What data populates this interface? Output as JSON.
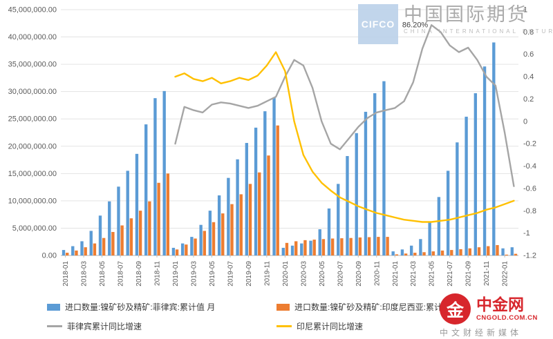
{
  "watermarks": {
    "cifco": {
      "logo": "CIFCO",
      "name_cn": "中国国际期货",
      "name_en": "CHINA INTERNATIONAL FUTURES"
    },
    "cngold": {
      "logo_glyph": "金",
      "name_cn": "中金网",
      "domain": "CNGOLD.COM.CN",
      "tagline": "中文财经新媒体"
    }
  },
  "chart_data": {
    "type": "bar",
    "subtype": "combo-bar-line-dual-axis",
    "grid": true,
    "legend_position": "bottom",
    "title": "",
    "xlabel": "",
    "ylabel": "",
    "categories": [
      "2018-01",
      "2018-02",
      "2018-03",
      "2018-04",
      "2018-05",
      "2018-06",
      "2018-07",
      "2018-08",
      "2018-09",
      "2018-10",
      "2018-11",
      "2018-12",
      "2019-01",
      "2019-02",
      "2019-03",
      "2019-04",
      "2019-05",
      "2019-06",
      "2019-07",
      "2019-08",
      "2019-09",
      "2019-10",
      "2019-11",
      "2019-12",
      "2020-01",
      "2020-02",
      "2020-03",
      "2020-04",
      "2020-05",
      "2020-06",
      "2020-07",
      "2020-08",
      "2020-09",
      "2020-10",
      "2020-11",
      "2020-12",
      "2021-01",
      "2021-02",
      "2021-03",
      "2021-04",
      "2021-05",
      "2021-06",
      "2021-07",
      "2021-08",
      "2021-09",
      "2021-10",
      "2021-11",
      "2021-12",
      "2022-01",
      "2022-02"
    ],
    "x_tick_labels": [
      "2018-01",
      "2018-03",
      "2018-05",
      "2018-07",
      "2018-09",
      "2018-11",
      "2019-01",
      "2019-03",
      "2019-05",
      "2019-07",
      "2019-09",
      "2019-11",
      "2020-01",
      "2020-03",
      "2020-05",
      "2020-07",
      "2020-09",
      "2020-11",
      "2021-01",
      "2021-03",
      "2021-05",
      "2021-07",
      "2021-09",
      "2021-11",
      "2022-01"
    ],
    "left_axis": {
      "min": 0,
      "max": 45000000,
      "step": 5000000,
      "tick_labels": [
        "45,000,000.00",
        "40,000,000.00",
        "35,000,000.00",
        "30,000,000.00",
        "25,000,000.00",
        "20,000,000.00",
        "15,000,000.00",
        "10,000,000.00",
        "5,000,000.00",
        "0.00"
      ]
    },
    "right_axis": {
      "min": -1.2,
      "max": 1,
      "step": 0.2,
      "tick_labels": [
        "1",
        "0.8",
        "0.6",
        "0.4",
        "0.2",
        "0",
        "-0.2",
        "-0.4",
        "-0.6",
        "-0.8",
        "-1",
        "-1.2"
      ]
    },
    "series": [
      {
        "key": "philippines-cumulative-bar",
        "name": "进口数量:镍矿砂及精矿:菲律宾:累计值 月",
        "type": "bar",
        "axis": "left",
        "color": "#5b9bd5",
        "values": [
          1000000,
          1700000,
          2600000,
          4500000,
          7300000,
          9900000,
          12600000,
          15500000,
          18600000,
          24000000,
          28800000,
          30100000,
          1400000,
          2200000,
          3400000,
          5600000,
          8200000,
          11000000,
          14200000,
          17600000,
          20600000,
          23400000,
          26400000,
          28900000,
          1400000,
          1800000,
          2200000,
          2700000,
          4800000,
          8600000,
          13100000,
          18200000,
          22400000,
          26300000,
          29700000,
          31900000,
          750000,
          1100000,
          1800000,
          3000000,
          6000000,
          10700000,
          15500000,
          20700000,
          25400000,
          29700000,
          34600000,
          39000000,
          1300000,
          1500000
        ]
      },
      {
        "key": "indonesia-cumulative-bar",
        "name": "进口数量:镍矿砂及精矿:印度尼西亚:累计值 月",
        "type": "bar",
        "axis": "left",
        "color": "#ed7d31",
        "values": [
          500000,
          900000,
          1500000,
          2200000,
          3200000,
          4300000,
          5500000,
          6800000,
          8200000,
          9900000,
          13300000,
          15000000,
          1100000,
          2000000,
          3100000,
          4500000,
          6100000,
          7700000,
          9400000,
          11200000,
          13100000,
          15200000,
          18300000,
          23800000,
          2300000,
          2600000,
          2800000,
          2900000,
          3000000,
          3100000,
          3150000,
          3200000,
          3300000,
          3350000,
          3400000,
          3400000,
          200000,
          350000,
          500000,
          600000,
          750000,
          900000,
          1000000,
          1150000,
          1300000,
          1500000,
          1700000,
          1900000,
          150000,
          300000
        ]
      },
      {
        "key": "philippines-yoy-line",
        "name": "菲律宾累计同比增速",
        "type": "line",
        "axis": "right",
        "color": "#a5a5a5",
        "values": [
          null,
          null,
          null,
          null,
          null,
          null,
          null,
          null,
          null,
          null,
          null,
          null,
          -0.2,
          0.13,
          0.1,
          0.08,
          0.15,
          0.17,
          0.16,
          0.14,
          0.12,
          0.14,
          0.18,
          0.22,
          0.4,
          0.55,
          0.5,
          0.3,
          0.0,
          -0.2,
          -0.25,
          -0.15,
          -0.05,
          0.03,
          0.08,
          0.1,
          0.12,
          0.18,
          0.35,
          0.65,
          0.862,
          0.8,
          0.68,
          0.62,
          0.66,
          0.55,
          0.4,
          0.32,
          -0.1,
          -0.58
        ]
      },
      {
        "key": "indonesia-yoy-line",
        "name": "印尼累计同比增速",
        "type": "line",
        "axis": "right",
        "color": "#ffc000",
        "values": [
          null,
          null,
          null,
          null,
          null,
          null,
          null,
          null,
          null,
          null,
          null,
          null,
          0.4,
          0.43,
          0.38,
          0.36,
          0.39,
          0.34,
          0.36,
          0.39,
          0.37,
          0.41,
          0.5,
          0.62,
          0.45,
          0.0,
          -0.3,
          -0.45,
          -0.55,
          -0.62,
          -0.68,
          -0.72,
          -0.76,
          -0.79,
          -0.82,
          -0.84,
          -0.86,
          -0.88,
          -0.89,
          -0.9,
          -0.9,
          -0.89,
          -0.88,
          -0.86,
          -0.84,
          -0.82,
          -0.79,
          -0.77,
          -0.74,
          -0.71
        ]
      }
    ],
    "annotation": {
      "text": "86.20%",
      "category": "2021-05",
      "value": 0.862
    }
  }
}
